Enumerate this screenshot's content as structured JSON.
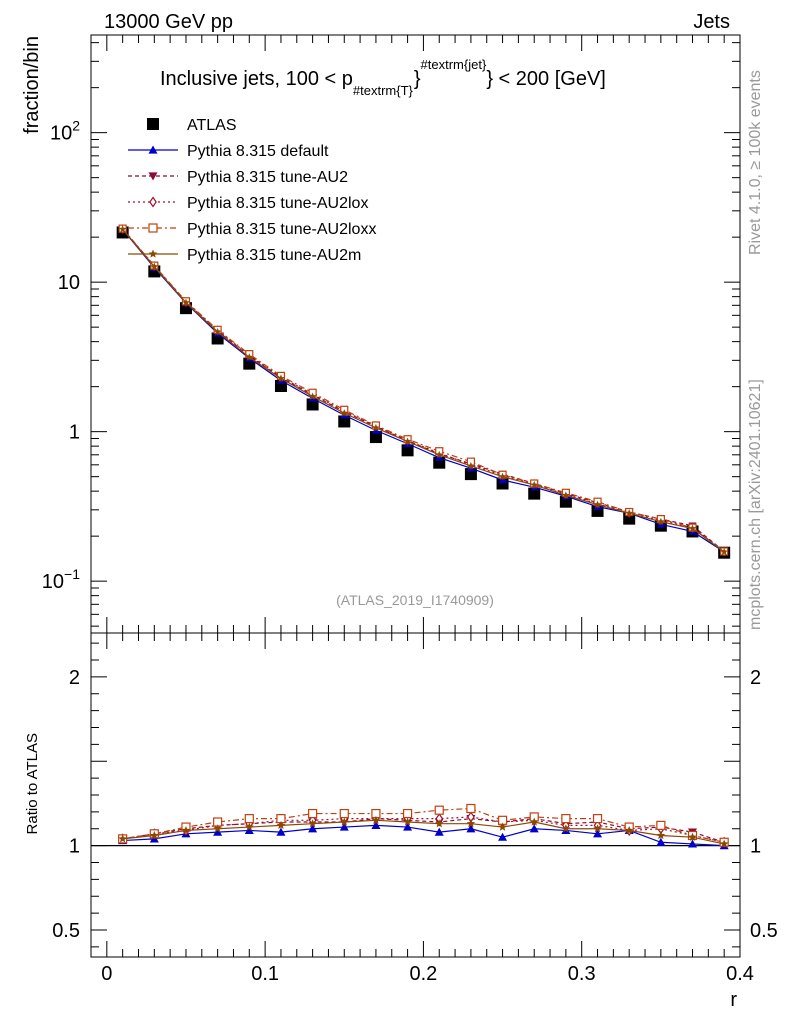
{
  "header": {
    "left_label": "13000 GeV pp",
    "right_label": "Jets"
  },
  "side_labels": {
    "rivet": "Rivet 4.1.0, ≥ 100k events",
    "mcplots": "mcplots.cern.ch [arXiv:2401.10621]"
  },
  "plot": {
    "title_prefix": "Inclusive jets, 100 < p",
    "title_sub": "#textrm{T}",
    "title_sup": "#textrm{jet}",
    "title_suffix": "} < 200 [GeV]",
    "watermark": "(ATLAS_2019_I1740909)",
    "ylabel_main": "fraction/bin",
    "ylabel_ratio": "Ratio to ATLAS",
    "xlabel": "r"
  },
  "colors": {
    "data": "#000000",
    "default": "#0000cc",
    "au2": "#8b0a3c",
    "au2lox": "#a01030",
    "au2loxx": "#c04010",
    "au2m": "#8b4a00"
  },
  "chart_data": [
    {
      "type": "line",
      "scale": "log",
      "title": "Inclusive jets, 100 < p_T^jet < 200 [GeV]",
      "xlabel": "r",
      "ylabel": "fraction/bin",
      "xlim": [
        -0.01,
        0.4
      ],
      "ylim": [
        0.045,
        450
      ],
      "yticks": [
        {
          "value": 0.1,
          "label": "10",
          "exp": "−1"
        },
        {
          "value": 1,
          "label": "1",
          "exp": ""
        },
        {
          "value": 10,
          "label": "10",
          "exp": ""
        },
        {
          "value": 100,
          "label": "10",
          "exp": "2"
        }
      ],
      "x": [
        0.01,
        0.03,
        0.05,
        0.07,
        0.09,
        0.11,
        0.13,
        0.15,
        0.17,
        0.19,
        0.21,
        0.23,
        0.25,
        0.27,
        0.29,
        0.31,
        0.33,
        0.35,
        0.37,
        0.39
      ],
      "series": [
        {
          "name": "ATLAS",
          "key": "data",
          "marker": "square",
          "values": [
            21.5,
            11.8,
            6.7,
            4.2,
            2.85,
            2.02,
            1.52,
            1.17,
            0.92,
            0.75,
            0.62,
            0.52,
            0.45,
            0.385,
            0.34,
            0.295,
            0.262,
            0.235,
            0.215,
            0.155
          ]
        },
        {
          "name": "Pythia 8.315 default",
          "key": "default",
          "marker": "triangle-up",
          "values": [
            22.5,
            12.5,
            7.25,
            4.55,
            3.1,
            2.2,
            1.67,
            1.29,
            1.02,
            0.83,
            0.67,
            0.57,
            0.475,
            0.425,
            0.37,
            0.315,
            0.285,
            0.24,
            0.215,
            0.157
          ]
        },
        {
          "name": "Pythia 8.315 tune-AU2",
          "key": "au2",
          "marker": "triangle-down",
          "values": [
            22.7,
            12.8,
            7.4,
            4.7,
            3.2,
            2.3,
            1.76,
            1.36,
            1.08,
            0.87,
            0.71,
            0.61,
            0.52,
            0.45,
            0.385,
            0.335,
            0.29,
            0.26,
            0.235,
            0.158
          ]
        },
        {
          "name": "Pythia 8.315 tune-AU2lox",
          "key": "au2lox",
          "marker": "diamond-open",
          "values": [
            22.6,
            12.8,
            7.35,
            4.75,
            3.25,
            2.32,
            1.78,
            1.37,
            1.09,
            0.87,
            0.72,
            0.6,
            0.51,
            0.445,
            0.38,
            0.33,
            0.285,
            0.255,
            0.228,
            0.158
          ]
        },
        {
          "name": "Pythia 8.315 tune-AU2loxx",
          "key": "au2loxx",
          "marker": "square-open",
          "values": [
            22.8,
            12.9,
            7.45,
            4.8,
            3.3,
            2.36,
            1.82,
            1.4,
            1.1,
            0.89,
            0.74,
            0.63,
            0.515,
            0.45,
            0.39,
            0.34,
            0.29,
            0.26,
            0.228,
            0.158
          ]
        },
        {
          "name": "Pythia 8.315 tune-AU2m",
          "key": "au2m",
          "marker": "star",
          "values": [
            22.6,
            12.7,
            7.3,
            4.65,
            3.15,
            2.27,
            1.72,
            1.33,
            1.06,
            0.86,
            0.7,
            0.59,
            0.5,
            0.44,
            0.375,
            0.325,
            0.285,
            0.25,
            0.225,
            0.157
          ]
        }
      ]
    },
    {
      "type": "line",
      "title": "Ratio to ATLAS",
      "xlabel": "r",
      "ylabel": "Ratio to ATLAS",
      "xlim": [
        -0.01,
        0.4
      ],
      "ylim": [
        0.34,
        2.26
      ],
      "yticks": [
        {
          "value": 0.5,
          "label": "0.5"
        },
        {
          "value": 1,
          "label": "1"
        },
        {
          "value": 2,
          "label": "2"
        }
      ],
      "xticks": [
        {
          "value": 0,
          "label": "0"
        },
        {
          "value": 0.1,
          "label": "0.1"
        },
        {
          "value": 0.2,
          "label": "0.2"
        },
        {
          "value": 0.3,
          "label": "0.3"
        },
        {
          "value": 0.4,
          "label": "0.4"
        }
      ],
      "reference": 1,
      "x": [
        0.01,
        0.03,
        0.05,
        0.07,
        0.09,
        0.11,
        0.13,
        0.15,
        0.17,
        0.19,
        0.21,
        0.23,
        0.25,
        0.27,
        0.29,
        0.31,
        0.33,
        0.35,
        0.37,
        0.39
      ],
      "series": [
        {
          "name": "Pythia 8.315 default",
          "key": "default",
          "marker": "triangle-up",
          "values": [
            1.03,
            1.04,
            1.07,
            1.08,
            1.09,
            1.08,
            1.1,
            1.11,
            1.12,
            1.11,
            1.08,
            1.1,
            1.05,
            1.1,
            1.09,
            1.07,
            1.09,
            1.02,
            1.01,
            1.0
          ]
        },
        {
          "name": "Pythia 8.315 tune-AU2",
          "key": "au2",
          "marker": "triangle-down",
          "values": [
            1.04,
            1.07,
            1.1,
            1.12,
            1.13,
            1.14,
            1.14,
            1.14,
            1.16,
            1.15,
            1.14,
            1.16,
            1.14,
            1.16,
            1.13,
            1.14,
            1.1,
            1.11,
            1.08,
            1.02
          ]
        },
        {
          "name": "Pythia 8.315 tune-AU2lox",
          "key": "au2lox",
          "marker": "diamond-open",
          "values": [
            1.04,
            1.07,
            1.09,
            1.12,
            1.13,
            1.15,
            1.15,
            1.16,
            1.16,
            1.16,
            1.16,
            1.17,
            1.14,
            1.15,
            1.12,
            1.12,
            1.09,
            1.1,
            1.06,
            1.02
          ]
        },
        {
          "name": "Pythia 8.315 tune-AU2loxx",
          "key": "au2loxx",
          "marker": "square-open",
          "values": [
            1.04,
            1.07,
            1.11,
            1.14,
            1.16,
            1.16,
            1.19,
            1.19,
            1.19,
            1.19,
            1.21,
            1.22,
            1.15,
            1.17,
            1.16,
            1.16,
            1.11,
            1.12,
            1.06,
            1.02
          ]
        },
        {
          "name": "Pythia 8.315 tune-AU2m",
          "key": "au2m",
          "marker": "star",
          "values": [
            1.04,
            1.06,
            1.09,
            1.1,
            1.11,
            1.12,
            1.13,
            1.14,
            1.15,
            1.14,
            1.13,
            1.13,
            1.11,
            1.14,
            1.1,
            1.1,
            1.09,
            1.06,
            1.05,
            1.01
          ]
        }
      ]
    }
  ]
}
